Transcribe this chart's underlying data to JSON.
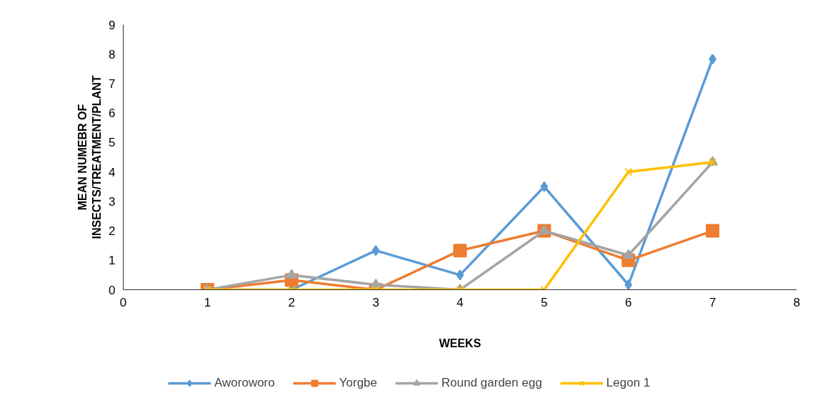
{
  "chart_data": {
    "type": "line",
    "xlabel": "WEEKS",
    "ylabel": "MEAN NUMEBR OF\nINSECTS/TREATMENT/PLANT",
    "x": [
      1,
      2,
      3,
      4,
      5,
      6,
      7
    ],
    "series": [
      {
        "name": "Aworoworo",
        "color": "#5b9bd5",
        "marker": "diamond",
        "values": [
          0,
          0,
          1.33,
          0.5,
          3.5,
          0.17,
          7.83
        ]
      },
      {
        "name": "Yorgbe",
        "color": "#ed7d31",
        "marker": "square",
        "values": [
          0,
          0.33,
          0,
          1.33,
          2,
          1,
          2
        ]
      },
      {
        "name": "Round garden egg",
        "color": "#a5a5a5",
        "marker": "triangle",
        "values": [
          0,
          0.5,
          0.17,
          0,
          2,
          1.17,
          4.33
        ]
      },
      {
        "name": "Legon 1",
        "color": "#ffc000",
        "marker": "cross",
        "values": [
          0,
          0,
          0,
          0,
          0,
          4,
          4.33
        ]
      }
    ],
    "xlim": [
      0,
      8
    ],
    "xticks": [
      0,
      1,
      2,
      3,
      4,
      5,
      6,
      7,
      8
    ],
    "ylim": [
      0,
      9
    ],
    "yticks": [
      0,
      1,
      2,
      3,
      4,
      5,
      6,
      7,
      8,
      9
    ],
    "grid": false,
    "legend": "bottom",
    "line_style": "solid"
  }
}
